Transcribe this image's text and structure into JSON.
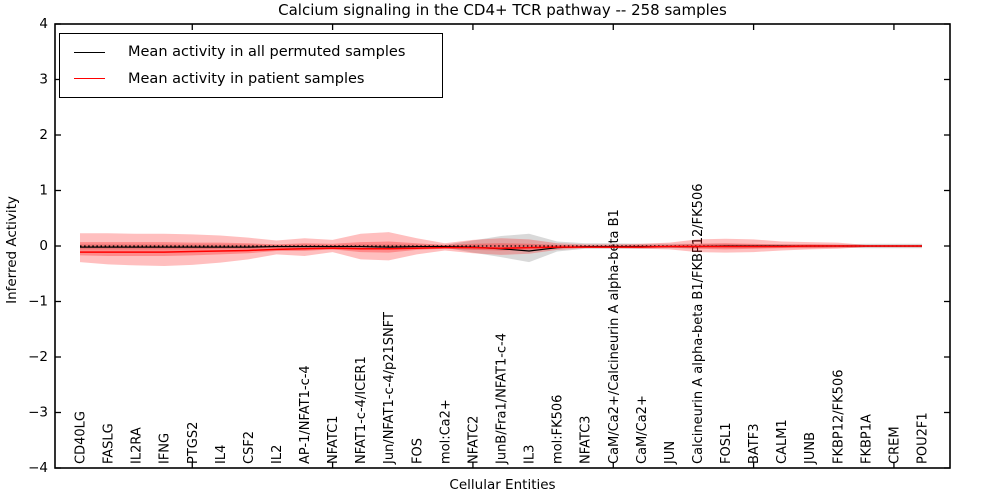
{
  "legend": {
    "entries": [
      {
        "label": "Mean activity in all permuted samples",
        "color": "#000000"
      },
      {
        "label": "Mean activity in patient samples",
        "color": "#ff0000"
      }
    ]
  },
  "chart_data": {
    "type": "line",
    "title": "Calcium signaling in the CD4+ TCR pathway -- 258 samples",
    "xlabel": "Cellular Entities",
    "ylabel": "Inferred Activity",
    "ylim": [
      -4,
      4
    ],
    "y_ticks": [
      4,
      3,
      2,
      1,
      0,
      -1,
      -2,
      -3,
      -4
    ],
    "x_tick_indices": [
      4,
      9,
      14,
      19,
      24,
      29
    ],
    "grid": false,
    "legend_position": "upper left",
    "zero_line": 0,
    "categories": [
      "CD40LG",
      "FASLG",
      "IL2RA",
      "IFNG",
      "PTGS2",
      "IL4",
      "CSF2",
      "IL2",
      "AP-1/NFAT1-c-4",
      "NFATC1",
      "NFAT1-c-4/ICER1",
      "Jun/NFAT1-c-4/p21SNFT",
      "FOS",
      "mol:Ca2+",
      "NFATC2",
      "JunB/Fra1/NFAT1-c-4",
      "IL3",
      "mol:FK506",
      "NFATC3",
      "CaM/Ca2+/Calcineurin A alpha-beta B1",
      "CaM/Ca2+",
      "JUN",
      "Calcineurin A alpha-beta B1/FKBP12/FK506",
      "FOSL1",
      "BATF3",
      "CALM1",
      "JUNB",
      "FKBP12/FK506",
      "FKBP1A",
      "CREM",
      "POU2F1"
    ],
    "series": [
      {
        "name": "Mean activity in all permuted samples",
        "color": "#000000",
        "width": 1.2,
        "values": [
          -0.02,
          -0.02,
          -0.02,
          -0.02,
          -0.02,
          -0.02,
          -0.02,
          -0.01,
          -0.01,
          -0.01,
          -0.01,
          -0.02,
          -0.01,
          -0.01,
          -0.02,
          -0.05,
          -0.09,
          -0.03,
          -0.01,
          -0.01,
          -0.01,
          -0.01,
          -0.01,
          0,
          0,
          0,
          0,
          0,
          0,
          0,
          0
        ]
      },
      {
        "name": "Mean activity in patient samples",
        "color": "#ff0000",
        "width": 1.5,
        "values": [
          -0.11,
          -0.11,
          -0.11,
          -0.11,
          -0.1,
          -0.09,
          -0.08,
          -0.06,
          -0.05,
          -0.04,
          -0.05,
          -0.05,
          -0.04,
          -0.03,
          -0.03,
          -0.04,
          -0.03,
          -0.02,
          -0.02,
          -0.02,
          -0.02,
          -0.01,
          -0.01,
          -0.01,
          -0.01,
          -0.01,
          0,
          0,
          0,
          0,
          0
        ]
      }
    ],
    "bands": [
      {
        "name": "permuted-range",
        "fill": "rgba(120,120,120,0.28)",
        "upper": [
          0.03,
          0.03,
          0.03,
          0.03,
          0.03,
          0.03,
          0.03,
          0.02,
          0.03,
          0.02,
          0.03,
          0.03,
          0.03,
          0.02,
          0.1,
          0.18,
          0.22,
          0.08,
          0.05,
          0.05,
          0.04,
          0.04,
          0.04,
          0.04,
          0.03,
          0.03,
          0.03,
          0.03,
          0.04,
          0.04,
          0.04
        ],
        "lower": [
          -0.06,
          -0.06,
          -0.06,
          -0.06,
          -0.06,
          -0.05,
          -0.05,
          -0.04,
          -0.05,
          -0.04,
          -0.05,
          -0.05,
          -0.04,
          -0.03,
          -0.12,
          -0.2,
          -0.29,
          -0.1,
          -0.05,
          -0.05,
          -0.05,
          -0.04,
          -0.04,
          -0.04,
          -0.04,
          -0.03,
          -0.03,
          -0.03,
          -0.04,
          -0.04,
          -0.04
        ]
      },
      {
        "name": "patient-range-outer",
        "fill": "rgba(255,0,0,0.25)",
        "upper": [
          0.23,
          0.23,
          0.22,
          0.22,
          0.21,
          0.19,
          0.15,
          0.1,
          0.14,
          0.11,
          0.22,
          0.25,
          0.14,
          0.05,
          0.11,
          0.14,
          0.12,
          0.05,
          0.03,
          0.03,
          0.04,
          0.06,
          0.12,
          0.13,
          0.12,
          0.08,
          0.07,
          0.06,
          0.02,
          0.02,
          0.02
        ],
        "lower": [
          -0.29,
          -0.33,
          -0.35,
          -0.36,
          -0.34,
          -0.3,
          -0.24,
          -0.15,
          -0.18,
          -0.11,
          -0.24,
          -0.26,
          -0.15,
          -0.08,
          -0.13,
          -0.16,
          -0.14,
          -0.07,
          -0.04,
          -0.04,
          -0.05,
          -0.06,
          -0.11,
          -0.12,
          -0.11,
          -0.08,
          -0.06,
          -0.05,
          -0.02,
          -0.02,
          -0.02
        ]
      },
      {
        "name": "patient-range-inner",
        "fill": "rgba(255,0,0,0.28)",
        "upper": [
          0.07,
          0.07,
          0.07,
          0.07,
          0.06,
          0.06,
          0.05,
          0.03,
          0.05,
          0.04,
          0.07,
          0.08,
          0.05,
          0.02,
          0.04,
          0.05,
          0.04,
          0.02,
          0.01,
          0.01,
          0.02,
          0.02,
          0.04,
          0.05,
          0.04,
          0.03,
          0.03,
          0.02,
          0.01,
          0.01,
          0.01
        ],
        "lower": [
          -0.17,
          -0.18,
          -0.18,
          -0.18,
          -0.17,
          -0.15,
          -0.13,
          -0.09,
          -0.09,
          -0.06,
          -0.11,
          -0.12,
          -0.07,
          -0.05,
          -0.07,
          -0.08,
          -0.07,
          -0.04,
          -0.03,
          -0.03,
          -0.03,
          -0.03,
          -0.05,
          -0.06,
          -0.05,
          -0.04,
          -0.04,
          -0.03,
          -0.02,
          -0.02,
          -0.02
        ]
      }
    ]
  }
}
